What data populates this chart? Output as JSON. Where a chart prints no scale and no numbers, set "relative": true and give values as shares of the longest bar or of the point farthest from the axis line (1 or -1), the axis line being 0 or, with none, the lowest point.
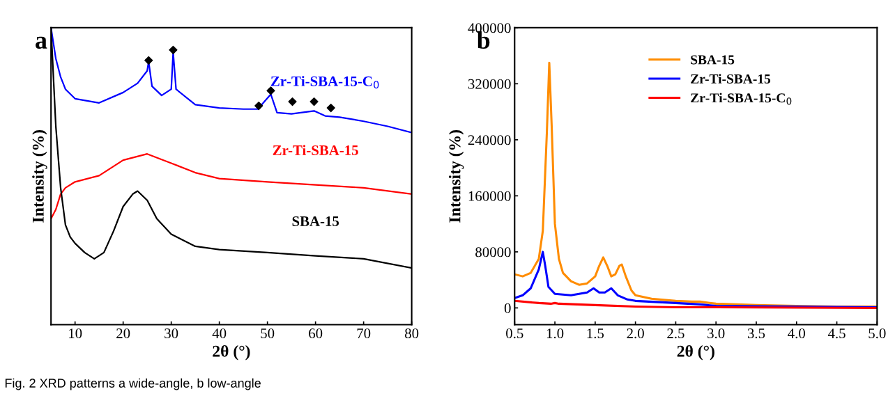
{
  "chart_data": [
    {
      "type": "line",
      "title": "a",
      "xlabel": "2θ (°)",
      "ylabel": "Intensity (%)",
      "relative": true,
      "xlim": [
        5,
        80
      ],
      "xticks": [
        10,
        20,
        30,
        40,
        50,
        60,
        70,
        80
      ],
      "legend": false,
      "grid": false,
      "annotations": [
        "Fig. 2 XRD patterns a wide-angle, b low-angle"
      ],
      "series": [
        {
          "name": "Zr-Ti-SBA-15-C$_{0}$",
          "color": "#0000ff",
          "x": [
            5,
            6,
            7,
            8,
            10,
            15,
            20,
            23,
            25,
            25.3,
            26,
            28,
            30,
            30.4,
            31,
            35,
            40,
            45,
            48,
            50.7,
            52,
            55,
            59.7,
            62,
            65,
            70,
            75,
            80
          ],
          "values": [
            1.0,
            0.896,
            0.834,
            0.793,
            0.761,
            0.747,
            0.782,
            0.813,
            0.855,
            0.886,
            0.803,
            0.772,
            0.793,
            0.917,
            0.793,
            0.741,
            0.73,
            0.726,
            0.726,
            0.776,
            0.714,
            0.71,
            0.72,
            0.703,
            0.699,
            0.685,
            0.668,
            0.647
          ]
        },
        {
          "name": "Zr-Ti-SBA-15",
          "color": "#ff0000",
          "x": [
            5,
            6,
            7,
            8,
            10,
            15,
            20,
            25,
            30,
            35,
            40,
            50,
            60,
            70,
            80
          ],
          "values": [
            0.357,
            0.388,
            0.44,
            0.461,
            0.481,
            0.502,
            0.554,
            0.575,
            0.544,
            0.512,
            0.492,
            0.481,
            0.471,
            0.461,
            0.44
          ]
        },
        {
          "name": "SBA-15",
          "color": "#000000",
          "x": [
            5,
            6,
            7,
            8,
            9,
            10,
            12,
            14,
            16,
            18,
            20,
            22,
            23,
            25,
            27,
            30,
            35,
            40,
            50,
            60,
            70,
            80
          ],
          "values": [
            1.0,
            0.668,
            0.461,
            0.336,
            0.295,
            0.274,
            0.243,
            0.222,
            0.243,
            0.315,
            0.398,
            0.44,
            0.45,
            0.419,
            0.357,
            0.305,
            0.264,
            0.253,
            0.243,
            0.232,
            0.222,
            0.191
          ]
        },
        {
          "type": "scatter",
          "marker": "diamond",
          "color": "#000000",
          "x": [
            25.3,
            30.4,
            48.2,
            50.7,
            55.2,
            59.7,
            63.2
          ],
          "values": [
            0.89,
            0.925,
            0.737,
            0.788,
            0.751,
            0.751,
            0.73
          ]
        }
      ]
    },
    {
      "type": "line",
      "title": "b",
      "xlabel": "2θ (°)",
      "ylabel": "Intensity (%)",
      "xlim": [
        0.5,
        5.0
      ],
      "ylim": [
        -24000,
        400000
      ],
      "xticks": [
        {
          "value": 0.5,
          "label": "0.5"
        },
        {
          "value": 1.0,
          "label": "1.0"
        },
        {
          "value": 1.5,
          "label": "1.5"
        },
        {
          "value": 2.0,
          "label": "2.0"
        },
        {
          "value": 2.5,
          "label": "2.5"
        },
        {
          "value": 3.0,
          "label": "3.0"
        },
        {
          "value": 3.5,
          "label": "3.5"
        },
        {
          "value": 4.0,
          "label": "4.0"
        },
        {
          "value": 4.5,
          "label": "4.5"
        },
        {
          "value": 5.0,
          "label": "5.0"
        }
      ],
      "yticks": [
        0,
        80000,
        160000,
        240000,
        320000,
        400000
      ],
      "legend": "top right",
      "grid": false,
      "series": [
        {
          "name": "SBA-15",
          "color": "#ff8c00",
          "x": [
            0.5,
            0.6,
            0.7,
            0.8,
            0.85,
            0.9,
            0.93,
            0.96,
            1.0,
            1.05,
            1.1,
            1.2,
            1.3,
            1.4,
            1.5,
            1.55,
            1.6,
            1.65,
            1.7,
            1.75,
            1.8,
            1.83,
            1.88,
            1.95,
            2.0,
            2.2,
            2.5,
            2.7,
            2.8,
            3.0,
            3.5,
            4.0,
            4.5,
            5.0
          ],
          "values": [
            48000,
            45000,
            50000,
            70000,
            110000,
            250000,
            350000,
            260000,
            120000,
            70000,
            50000,
            38000,
            33000,
            35000,
            45000,
            60000,
            72000,
            60000,
            45000,
            48000,
            60000,
            62000,
            45000,
            25000,
            18000,
            13000,
            10000,
            9000,
            9000,
            6000,
            4000,
            3000,
            2000,
            2000
          ]
        },
        {
          "name": "Zr-Ti-SBA-15",
          "color": "#0000ff",
          "x": [
            0.5,
            0.6,
            0.7,
            0.8,
            0.85,
            0.88,
            0.92,
            1.0,
            1.2,
            1.4,
            1.48,
            1.55,
            1.62,
            1.7,
            1.78,
            1.9,
            2.0,
            2.5,
            2.8,
            3.0,
            4.0,
            5.0
          ],
          "values": [
            14000,
            18000,
            28000,
            55000,
            80000,
            60000,
            30000,
            20000,
            18000,
            22000,
            28000,
            22000,
            22000,
            28000,
            18000,
            12000,
            10000,
            7000,
            5000,
            3000,
            2000,
            1000
          ]
        },
        {
          "name": "Zr-Ti-SBA-15-C$_{0}$",
          "color": "#ff0000",
          "x": [
            0.5,
            0.8,
            0.95,
            1.0,
            1.05,
            1.5,
            2.0,
            2.5,
            3.0,
            5.0
          ],
          "values": [
            10000,
            7000,
            6000,
            7000,
            6000,
            4000,
            2000,
            1000,
            1000,
            0
          ]
        }
      ]
    }
  ]
}
